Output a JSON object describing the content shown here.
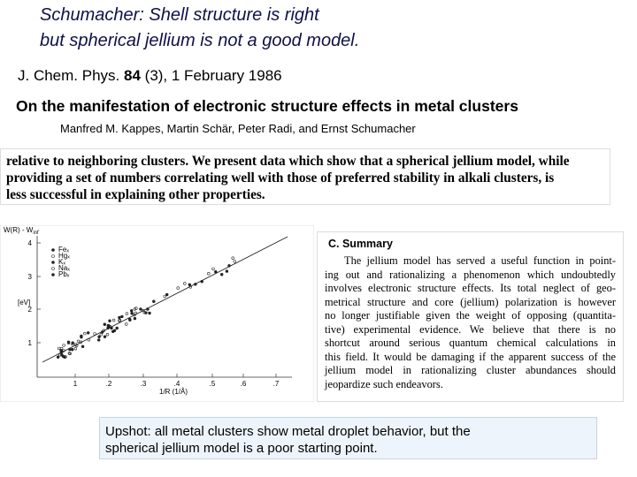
{
  "header": {
    "title_lines": [
      "Schumacher: Shell structure is right",
      "but spherical jellium is not a good model."
    ]
  },
  "citation": {
    "journal": "J. Chem. Phys.",
    "volume": "84",
    "issue_date": "(3), 1 February 1986"
  },
  "paper": {
    "title": "On the manifestation of electronic structure effects in metal clusters",
    "authors": "Manfred M.  Kappes, Martin  Schär, Peter  Radi, and Ernst  Schumacher"
  },
  "abstract": {
    "lines": [
      "relative to neighboring clusters. We present data which show that a spherical jellium model, while",
      "providing a set of numbers correlating well with those of preferred stability in alkali clusters, is",
      "less successful in explaining other properties."
    ]
  },
  "figure": {
    "y_label": "W(R) - W",
    "y_label_sub": "inf",
    "y_unit": "[eV]",
    "x_label": "1/R (1/Å)",
    "legend": [
      "Feₓ",
      "Hgₓ",
      "Kₓ",
      "Naₓ",
      "Pbₓ"
    ],
    "xticks": [
      "1",
      ".2",
      ".3",
      ".4",
      ".5",
      ".6",
      ".7"
    ],
    "yticks": [
      "1",
      "2",
      "3",
      "4"
    ]
  },
  "summary": {
    "heading": "C. Summary",
    "lines": [
      "The jellium model has served a useful function in point-",
      "ing out and rationalizing a phenomenon which undoubtedly",
      "involves electronic structure effects. Its total neglect of geo-",
      "metrical structure and core (jellium) polarization is however",
      "no longer justifiable given the weight of opposing (quantita-",
      "tive) experimental evidence. We believe that there is no",
      "shortcut around serious quantum chemical calculations in",
      "this field. It would be damaging if the apparent success of the",
      "jellium model in rationalizing cluster abundances should",
      "jeopardize such endeavors."
    ]
  },
  "upshot": {
    "lines": [
      "Upshot: all metal clusters show metal droplet behavior, but the",
      "spherical jellium model is a poor starting point."
    ]
  }
}
